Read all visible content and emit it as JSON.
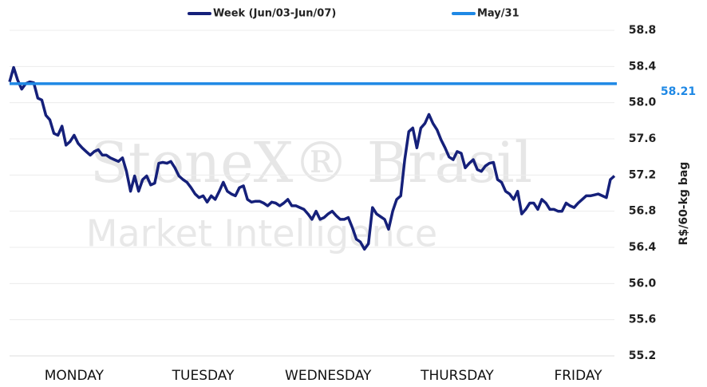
{
  "chart_data": {
    "type": "line",
    "watermark": [
      "StoneX® Brasil",
      "Market Intelligence"
    ],
    "y_axis_label": "R$/60-kg bag",
    "categories": [
      null,
      null,
      null,
      null,
      null,
      null,
      null,
      null,
      null,
      null,
      null,
      null,
      null,
      null,
      null,
      null,
      "MONDAY",
      null,
      null,
      null,
      null,
      null,
      null,
      null,
      null,
      null,
      null,
      null,
      null,
      null,
      null,
      null,
      null,
      null,
      null,
      null,
      null,
      null,
      null,
      null,
      null,
      null,
      null,
      null,
      null,
      null,
      null,
      null,
      "TUESDAY",
      null,
      null,
      null,
      null,
      null,
      null,
      null,
      null,
      null,
      null,
      null,
      null,
      null,
      null,
      null,
      null,
      null,
      null,
      null,
      null,
      null,
      null,
      null,
      null,
      null,
      null,
      null,
      null,
      null,
      null,
      "WEDNESDAY",
      null,
      null,
      null,
      null,
      null,
      null,
      null,
      null,
      null,
      null,
      null,
      null,
      null,
      null,
      null,
      null,
      null,
      null,
      null,
      null,
      null,
      null,
      null,
      null,
      null,
      null,
      null,
      null,
      null,
      null,
      null,
      "THURSDAY",
      null,
      null,
      null,
      null,
      null,
      null,
      null,
      null,
      null,
      null,
      null,
      null,
      null,
      null,
      null,
      null,
      null,
      null,
      null,
      null,
      null,
      null,
      null,
      null,
      null,
      null,
      null,
      null,
      null,
      "FRIDAY",
      null,
      null,
      null,
      null,
      null,
      null,
      null,
      null,
      null
    ],
    "series": [
      {
        "name": "Week (Jun/03-Jun/07)",
        "color": "#15207a",
        "values": [
          58.23,
          58.39,
          58.25,
          58.15,
          58.21,
          58.23,
          58.22,
          58.05,
          58.03,
          57.86,
          57.81,
          57.66,
          57.64,
          57.74,
          57.53,
          57.57,
          57.64,
          57.55,
          57.5,
          57.46,
          57.42,
          57.46,
          57.48,
          57.42,
          57.42,
          57.39,
          57.37,
          57.35,
          57.39,
          57.24,
          57.02,
          57.19,
          57.02,
          57.15,
          57.19,
          57.09,
          57.11,
          57.33,
          57.34,
          57.33,
          57.35,
          57.28,
          57.19,
          57.15,
          57.12,
          57.06,
          56.99,
          56.95,
          56.97,
          56.9,
          56.97,
          56.93,
          57.02,
          57.12,
          57.02,
          56.99,
          56.97,
          57.06,
          57.08,
          56.93,
          56.9,
          56.91,
          56.91,
          56.89,
          56.86,
          56.9,
          56.89,
          56.86,
          56.89,
          56.93,
          56.86,
          56.86,
          56.84,
          56.82,
          56.77,
          56.71,
          56.8,
          56.71,
          56.73,
          56.77,
          56.8,
          56.75,
          56.71,
          56.71,
          56.73,
          56.62,
          56.49,
          56.46,
          56.38,
          56.44,
          56.84,
          56.77,
          56.74,
          56.71,
          56.6,
          56.8,
          56.93,
          56.97,
          57.37,
          57.68,
          57.72,
          57.5,
          57.72,
          57.77,
          57.87,
          57.77,
          57.7,
          57.59,
          57.5,
          57.4,
          57.37,
          57.46,
          57.44,
          57.28,
          57.33,
          57.37,
          57.26,
          57.24,
          57.3,
          57.33,
          57.34,
          57.15,
          57.12,
          57.02,
          56.99,
          56.93,
          57.02,
          56.77,
          56.82,
          56.89,
          56.89,
          56.82,
          56.93,
          56.89,
          56.82,
          56.82,
          56.8,
          56.8,
          56.89,
          56.86,
          56.84,
          56.89,
          56.93,
          56.97,
          56.97,
          56.98,
          56.99,
          56.97,
          56.95,
          57.15,
          57.19
        ]
      }
    ],
    "reference_lines": [
      {
        "name": "May/31",
        "color": "#1e88e5",
        "value": 58.21
      }
    ],
    "ylim": [
      55.2,
      58.8
    ],
    "yticks": [
      55.2,
      55.6,
      {
        "value": 56,
        "label": "56.0"
      },
      56.4,
      56.8,
      57.2,
      57.6,
      {
        "value": 58,
        "label": "58.0"
      },
      58.4,
      58.8
    ],
    "grid": true
  }
}
